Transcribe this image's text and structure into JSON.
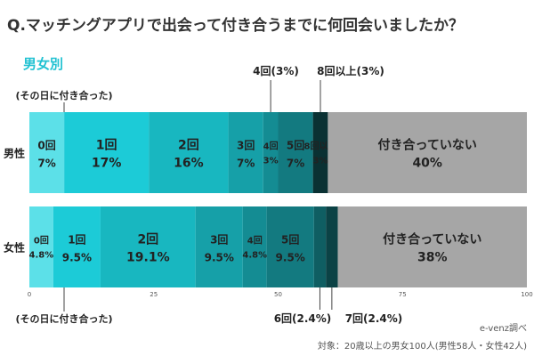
{
  "title": "Q.マッチングアプリで出会って付き合うまでに何回会いましたか？",
  "subtitle": "男女別",
  "source": "e-venz調べ",
  "note": "対象：20歳以上の男女100人(男性58人・女性42人)",
  "chart_data": {
    "type": "bar",
    "orientation": "horizontal",
    "stacked": true,
    "title": "Q.マッチングアプリで出会って付き合うまでに何回会いましたか？",
    "subtitle": "男女別",
    "xlim": [
      0,
      100
    ],
    "x_ticks": [
      "0",
      "25",
      "50",
      "75",
      "100"
    ],
    "grid": false,
    "categories": [
      "男性",
      "女性"
    ],
    "segments": [
      {
        "name": "0回",
        "caption": "(その日に付き合った)",
        "color": "#5ce0e8",
        "values": [
          7,
          4.8
        ],
        "labels": [
          "7%",
          "4.8%"
        ]
      },
      {
        "name": "1回",
        "color": "#1ccbd7",
        "values": [
          17,
          9.5
        ],
        "labels": [
          "17%",
          "9.5%"
        ]
      },
      {
        "name": "2回",
        "color": "#18b7c0",
        "values": [
          16,
          19.1
        ],
        "labels": [
          "16%",
          "19.1%"
        ]
      },
      {
        "name": "3回",
        "color": "#16a0a8",
        "values": [
          7,
          9.5
        ],
        "labels": [
          "7%",
          "9.5%"
        ]
      },
      {
        "name": "4回",
        "color": "#148c93",
        "values": [
          3,
          4.8
        ],
        "labels": [
          "3%",
          "4.8%"
        ]
      },
      {
        "name": "5回",
        "color": "#137a80",
        "values": [
          7,
          9.5
        ],
        "labels": [
          "7%",
          "9.5%"
        ]
      },
      {
        "name": "6回",
        "color": "#0f5e62",
        "values": [
          0,
          2.4
        ],
        "labels": [
          "",
          "2.4%"
        ]
      },
      {
        "name": "7回",
        "color": "#0b4245",
        "values": [
          0,
          2.4
        ],
        "labels": [
          "",
          "2.4%"
        ]
      },
      {
        "name": "8回以上",
        "color": "#0a3133",
        "values": [
          3,
          0
        ],
        "labels": [
          "3%",
          ""
        ]
      },
      {
        "name": "付き合っていない",
        "color": "#a6a6a6",
        "values": [
          40,
          38
        ],
        "labels": [
          "40%",
          "38%"
        ]
      }
    ],
    "annotations": [
      "(その日に付き合った)",
      "4回(3%)",
      "8回以上(3%)",
      "(その日に付き合った)",
      "6回(2.4%)",
      "7回(2.4%)"
    ]
  }
}
